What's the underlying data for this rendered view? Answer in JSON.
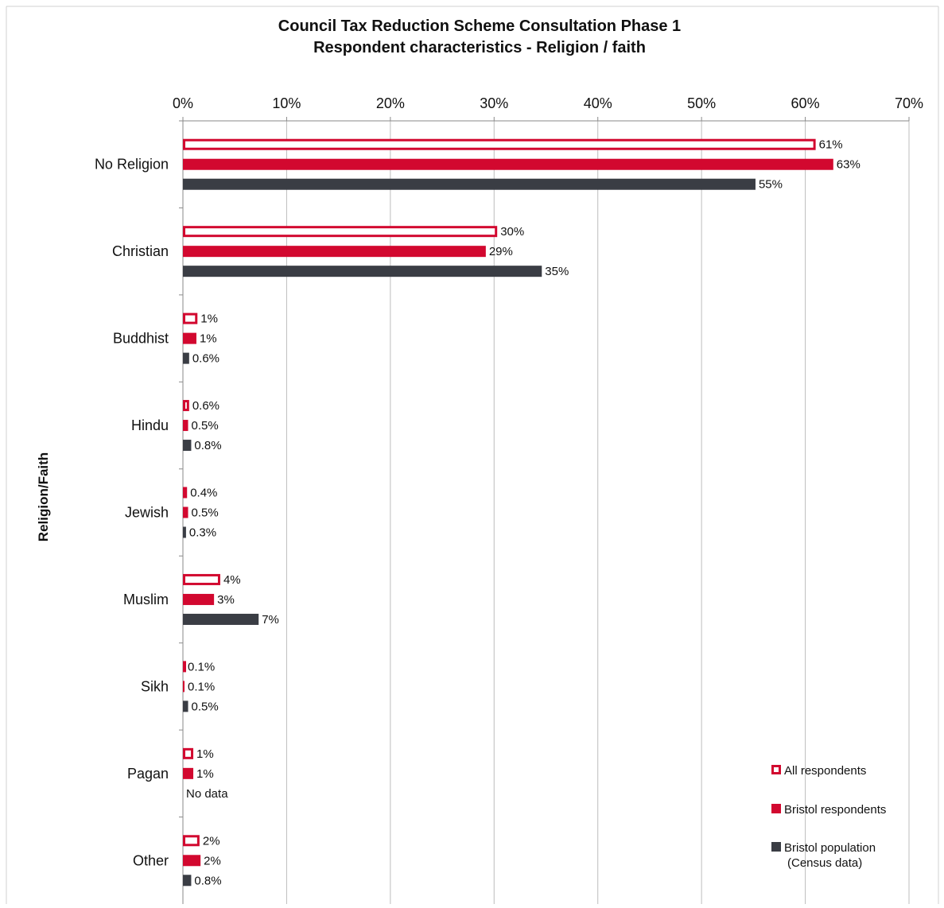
{
  "chart_data": {
    "type": "bar",
    "orientation": "horizontal",
    "title": "Council Tax Reduction Scheme Consultation Phase 1",
    "subtitle": "Respondent characteristics - Religion / faith",
    "xlabel": "",
    "ylabel": "Religion/Faith",
    "xlim": [
      0,
      70
    ],
    "x_ticks": [
      "0%",
      "10%",
      "20%",
      "30%",
      "40%",
      "50%",
      "60%",
      "70%"
    ],
    "x_axis_position": "top",
    "grid": true,
    "legend_position": "bottom-right",
    "categories": [
      "No Religion",
      "Christian",
      "Buddhist",
      "Hindu",
      "Jewish",
      "Muslim",
      "Sikh",
      "Pagan",
      "Other"
    ],
    "series": [
      {
        "name": "All respondents",
        "style": "outline",
        "color": "#d2082f",
        "values": [
          61,
          30.3,
          1.4,
          0.6,
          0.4,
          3.6,
          0.1,
          1.0,
          1.6
        ],
        "labels": [
          "61%",
          "30%",
          "1%",
          "0.6%",
          "0.4%",
          "4%",
          "0.1%",
          "1%",
          "2%"
        ]
      },
      {
        "name": "Bristol respondents",
        "style": "solid",
        "color": "#d2082f",
        "values": [
          62.7,
          29.2,
          1.3,
          0.5,
          0.5,
          3.0,
          0.1,
          1.0,
          1.7
        ],
        "labels": [
          "63%",
          "29%",
          "1%",
          "0.5%",
          "0.5%",
          "3%",
          "0.1%",
          "1%",
          "2%"
        ]
      },
      {
        "name": "Bristol population\n(Census data)",
        "style": "solid",
        "color": "#3a3d44",
        "values": [
          55.2,
          34.6,
          0.6,
          0.8,
          0.3,
          7.3,
          0.5,
          null,
          0.8
        ],
        "labels": [
          "55%",
          "35%",
          "0.6%",
          "0.8%",
          "0.3%",
          "7%",
          "0.5%",
          "No data",
          "0.8%"
        ]
      }
    ]
  }
}
